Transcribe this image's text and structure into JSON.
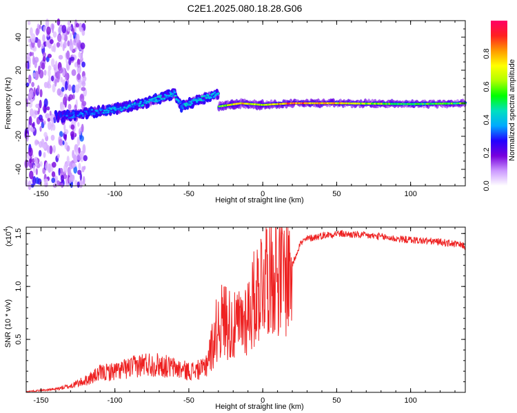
{
  "title": "C2E1.2025.080.18.28.G06",
  "chart_data": [
    {
      "type": "heatmap",
      "name": "spectrogram",
      "xlabel": "Height of straight line (km)",
      "ylabel": "Frequency (Hz)",
      "xlim": [
        -160,
        137
      ],
      "ylim": [
        -50,
        50
      ],
      "xticks": [
        -150,
        -100,
        -50,
        0,
        50,
        100
      ],
      "yticks": [
        -40,
        -20,
        0,
        20,
        40
      ],
      "colorbar": {
        "label": "Normalized spectral amplitude",
        "range": [
          0,
          1
        ],
        "ticks": [
          "0.0",
          "0.2",
          "0.4",
          "0.6",
          "0.8"
        ],
        "colors": [
          "#ffffff",
          "#cc99ff",
          "#7700dd",
          "#2200ff",
          "#00aaff",
          "#00e0c0",
          "#00ff00",
          "#b0ff00",
          "#ffff00",
          "#ff9900",
          "#ff2020",
          "#ff0066"
        ]
      },
      "ridge": [
        {
          "x": -135,
          "f": -8.0,
          "amp": 0.3
        },
        {
          "x": -120,
          "f": -6.0,
          "amp": 0.35
        },
        {
          "x": -100,
          "f": -3.5,
          "amp": 0.38
        },
        {
          "x": -80,
          "f": 0.0,
          "amp": 0.4
        },
        {
          "x": -60,
          "f": 6.0,
          "amp": 0.42
        },
        {
          "x": -55,
          "f": -2.0,
          "amp": 0.4
        },
        {
          "x": -40,
          "f": 3.0,
          "amp": 0.45
        },
        {
          "x": -30,
          "f": 6.0,
          "amp": 0.4
        },
        {
          "x": -30,
          "f": -2.0,
          "amp": 0.6
        },
        {
          "x": -15,
          "f": 0.0,
          "amp": 0.85
        },
        {
          "x": 0,
          "f": -1.0,
          "amp": 0.7
        },
        {
          "x": 20,
          "f": 0.0,
          "amp": 0.95
        },
        {
          "x": 50,
          "f": 0.0,
          "amp": 0.8
        },
        {
          "x": 100,
          "f": -0.5,
          "amp": 0.55
        },
        {
          "x": 137,
          "f": 0.0,
          "amp": 0.6
        }
      ]
    },
    {
      "type": "line",
      "name": "snr",
      "xlabel": "Height of straight line (km)",
      "ylabel": "SNR (10 * v/v)",
      "yscale_note": "(x10",
      "yscale_exp": "4",
      "line_color": "#ee2222",
      "xlim": [
        -160,
        137
      ],
      "ylim": [
        0,
        15600
      ],
      "xticks": [
        -150,
        -100,
        -50,
        0,
        50,
        100
      ],
      "yticks": [
        "0.5",
        "1.0",
        "1.5"
      ],
      "x": [
        -160,
        -140,
        -130,
        -120,
        -110,
        -100,
        -90,
        -80,
        -70,
        -60,
        -50,
        -40,
        -35,
        -30,
        -25,
        -20,
        -15,
        -10,
        -5,
        0,
        5,
        10,
        15,
        20,
        25,
        30,
        40,
        50,
        60,
        70,
        80,
        90,
        100,
        110,
        120,
        130,
        137
      ],
      "y": [
        80,
        300,
        600,
        1100,
        1800,
        2000,
        2300,
        2700,
        2600,
        2300,
        2000,
        2200,
        4000,
        6500,
        7000,
        6000,
        6500,
        7500,
        9000,
        11000,
        12000,
        11500,
        11000,
        12000,
        14000,
        14500,
        14800,
        15000,
        14900,
        14800,
        14700,
        14500,
        14400,
        14300,
        14200,
        14000,
        13800
      ]
    }
  ]
}
